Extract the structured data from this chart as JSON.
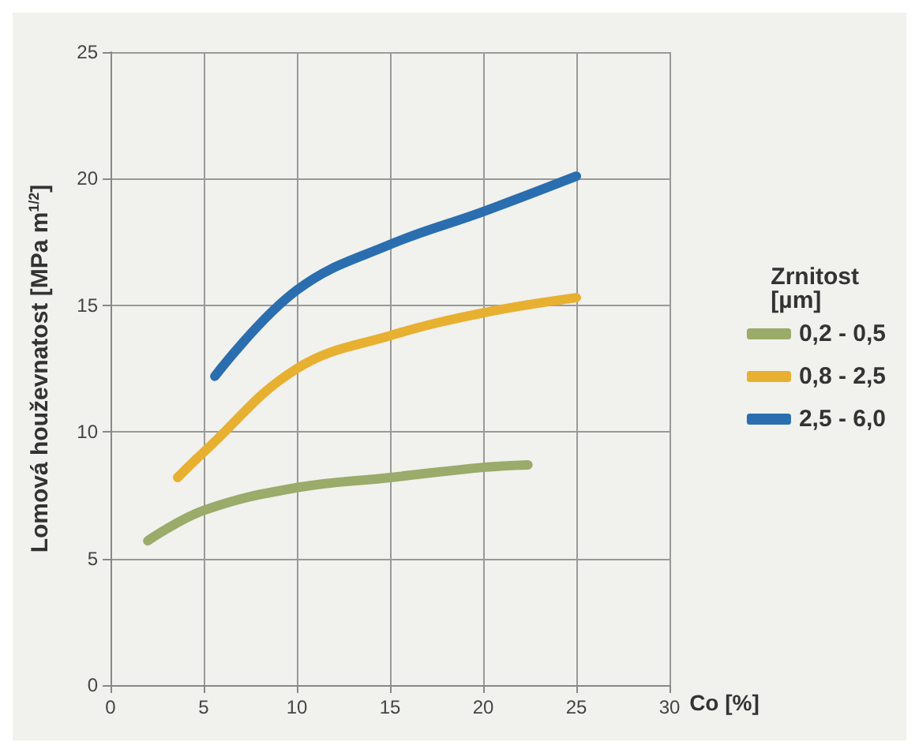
{
  "chart_data": {
    "type": "line",
    "xlabel": "Co [%]",
    "ylabel": "Lomová houževnatost [MPa m$^{1/2}$]",
    "legend_title": "Zrnitost\n[µm]",
    "xlim": [
      0,
      30
    ],
    "xticks": [
      0,
      5,
      10,
      15,
      20,
      25,
      30
    ],
    "ylim": [
      0,
      25
    ],
    "yticks": [
      0,
      5,
      10,
      15,
      20,
      25
    ],
    "grid": true,
    "legend": "right",
    "marker": "none",
    "line_style": "solid",
    "series": [
      {
        "name": "0,2 - 0,5",
        "color": "#9aab6a",
        "x": [
          2,
          5,
          10,
          15,
          20,
          22.4
        ],
        "values": [
          5.7,
          6.9,
          7.8,
          8.2,
          8.6,
          8.7
        ]
      },
      {
        "name": "0,8 - 2,5",
        "color": "#e8b030",
        "x": [
          3.6,
          5,
          10,
          15,
          20,
          25
        ],
        "values": [
          8.2,
          9.2,
          12.5,
          13.8,
          14.7,
          15.3
        ]
      },
      {
        "name": "2,5 - 6,0",
        "color": "#2a6eb0",
        "x": [
          5.6,
          10,
          15,
          20,
          25
        ],
        "values": [
          12.2,
          15.6,
          17.4,
          18.7,
          20.1
        ]
      }
    ]
  }
}
